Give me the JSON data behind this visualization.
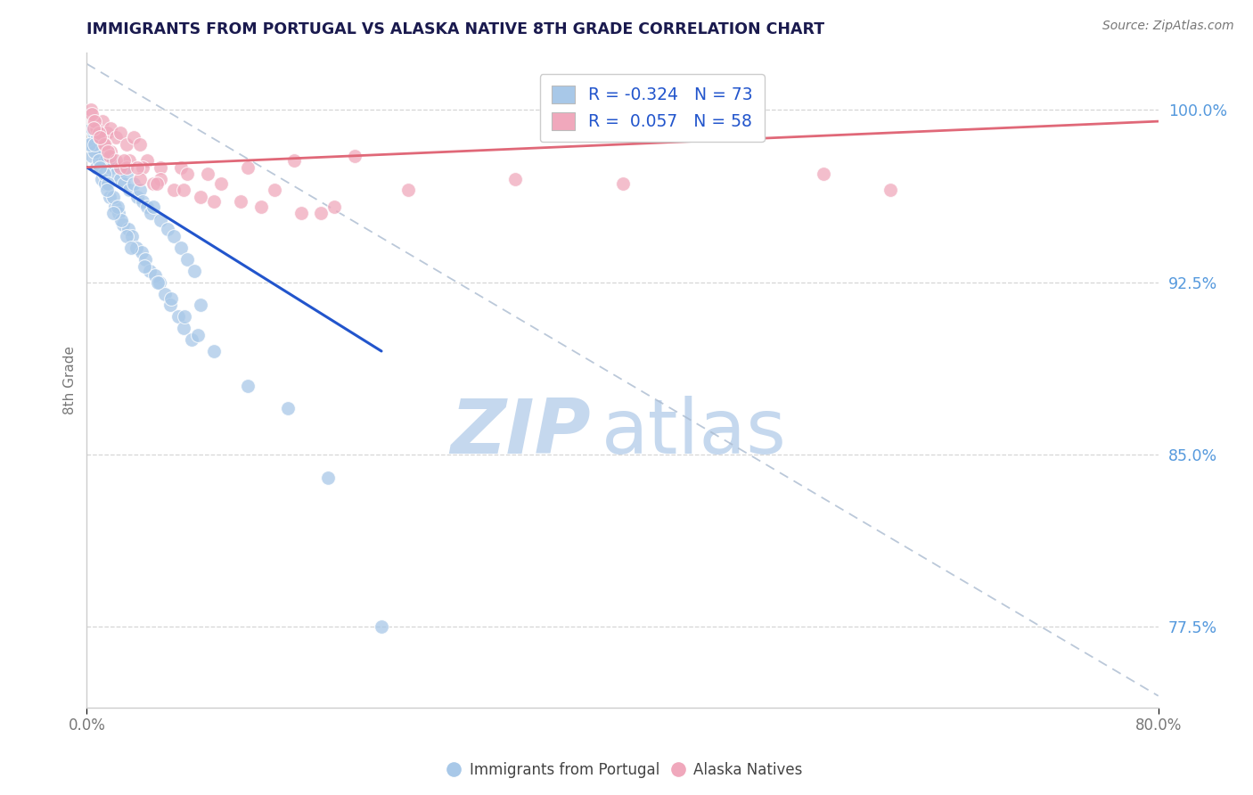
{
  "title": "IMMIGRANTS FROM PORTUGAL VS ALASKA NATIVE 8TH GRADE CORRELATION CHART",
  "source": "Source: ZipAtlas.com",
  "ylabel": "8th Grade",
  "x_label_bottom_left": "0.0%",
  "x_label_bottom_right": "80.0%",
  "xlim": [
    0.0,
    80.0
  ],
  "ylim": [
    74.0,
    102.5
  ],
  "yticks": [
    77.5,
    85.0,
    92.5,
    100.0
  ],
  "ytick_labels": [
    "77.5%",
    "85.0%",
    "92.5%",
    "100.0%"
  ],
  "legend_blue_label": "R = -0.324   N = 73",
  "legend_pink_label": "R =  0.057   N = 58",
  "legend_footer_blue": "Immigrants from Portugal",
  "legend_footer_pink": "Alaska Natives",
  "blue_color": "#a8c8e8",
  "pink_color": "#f0a8bc",
  "blue_line_color": "#2255cc",
  "pink_line_color": "#e06878",
  "watermark_zip": "ZIP",
  "watermark_atlas": "atlas",
  "blue_scatter_x": [
    0.3,
    0.5,
    0.8,
    1.0,
    1.2,
    1.5,
    1.8,
    2.0,
    2.2,
    2.5,
    2.8,
    3.0,
    3.2,
    3.5,
    3.8,
    4.0,
    4.2,
    4.5,
    4.8,
    5.0,
    5.5,
    6.0,
    6.5,
    7.0,
    7.5,
    8.0,
    0.4,
    0.7,
    1.1,
    1.4,
    1.7,
    2.1,
    2.4,
    2.7,
    3.1,
    3.4,
    3.7,
    4.1,
    4.4,
    4.7,
    5.1,
    5.4,
    5.8,
    6.2,
    6.8,
    7.2,
    7.8,
    0.6,
    0.9,
    1.3,
    1.6,
    2.0,
    2.3,
    2.6,
    3.0,
    3.3,
    4.3,
    5.3,
    6.3,
    7.3,
    8.3,
    9.5,
    12.0,
    15.0,
    18.0,
    0.2,
    0.4,
    0.6,
    1.0,
    1.5,
    2.0,
    8.5,
    22.0
  ],
  "blue_scatter_y": [
    98.5,
    99.0,
    98.8,
    98.2,
    97.8,
    98.0,
    97.5,
    97.8,
    97.2,
    97.0,
    96.8,
    97.2,
    96.5,
    96.8,
    96.2,
    96.5,
    96.0,
    95.8,
    95.5,
    95.8,
    95.2,
    94.8,
    94.5,
    94.0,
    93.5,
    93.0,
    98.0,
    97.5,
    97.0,
    96.8,
    96.2,
    95.8,
    95.5,
    95.0,
    94.8,
    94.5,
    94.0,
    93.8,
    93.5,
    93.0,
    92.8,
    92.5,
    92.0,
    91.5,
    91.0,
    90.5,
    90.0,
    98.2,
    97.8,
    97.2,
    96.8,
    96.2,
    95.8,
    95.2,
    94.5,
    94.0,
    93.2,
    92.5,
    91.8,
    91.0,
    90.2,
    89.5,
    88.0,
    87.0,
    84.0,
    98.5,
    99.2,
    98.5,
    97.5,
    96.5,
    95.5,
    91.5,
    77.5
  ],
  "pink_scatter_x": [
    0.3,
    0.5,
    0.8,
    1.2,
    1.5,
    1.8,
    2.2,
    2.5,
    3.0,
    3.5,
    4.0,
    4.5,
    5.5,
    7.0,
    9.0,
    12.0,
    15.5,
    20.0,
    0.4,
    0.7,
    1.0,
    1.4,
    1.8,
    2.5,
    3.2,
    4.2,
    5.5,
    7.5,
    10.0,
    14.0,
    18.5,
    0.6,
    0.9,
    1.3,
    1.7,
    2.2,
    3.0,
    4.0,
    5.0,
    6.5,
    8.5,
    11.5,
    16.0,
    0.5,
    1.0,
    1.6,
    2.8,
    3.8,
    5.2,
    7.2,
    9.5,
    13.0,
    17.5,
    24.0,
    32.0,
    40.0,
    55.0,
    60.0
  ],
  "pink_scatter_y": [
    100.0,
    99.5,
    99.2,
    99.5,
    99.0,
    99.2,
    98.8,
    99.0,
    98.5,
    98.8,
    98.5,
    97.8,
    97.5,
    97.5,
    97.2,
    97.5,
    97.8,
    98.0,
    99.8,
    99.2,
    98.8,
    98.5,
    98.2,
    97.5,
    97.8,
    97.5,
    97.0,
    97.2,
    96.8,
    96.5,
    95.8,
    99.5,
    99.0,
    98.5,
    98.0,
    97.8,
    97.5,
    97.0,
    96.8,
    96.5,
    96.2,
    96.0,
    95.5,
    99.2,
    98.8,
    98.2,
    97.8,
    97.5,
    96.8,
    96.5,
    96.0,
    95.8,
    95.5,
    96.5,
    97.0,
    96.8,
    97.2,
    96.5
  ],
  "blue_line_x": [
    0.0,
    22.0
  ],
  "blue_line_y": [
    97.5,
    89.5
  ],
  "pink_line_x": [
    0.0,
    80.0
  ],
  "pink_line_y": [
    97.5,
    99.5
  ],
  "dashed_line_x": [
    0.0,
    80.0
  ],
  "dashed_line_y": [
    102.0,
    74.5
  ],
  "title_color": "#1a1a4e",
  "source_color": "#777777",
  "ylabel_color": "#777777",
  "ytick_color": "#5599dd",
  "xtick_color": "#777777",
  "grid_color": "#cccccc",
  "watermark_color_zip": "#c5d8ee",
  "watermark_color_atlas": "#c5d8ee"
}
